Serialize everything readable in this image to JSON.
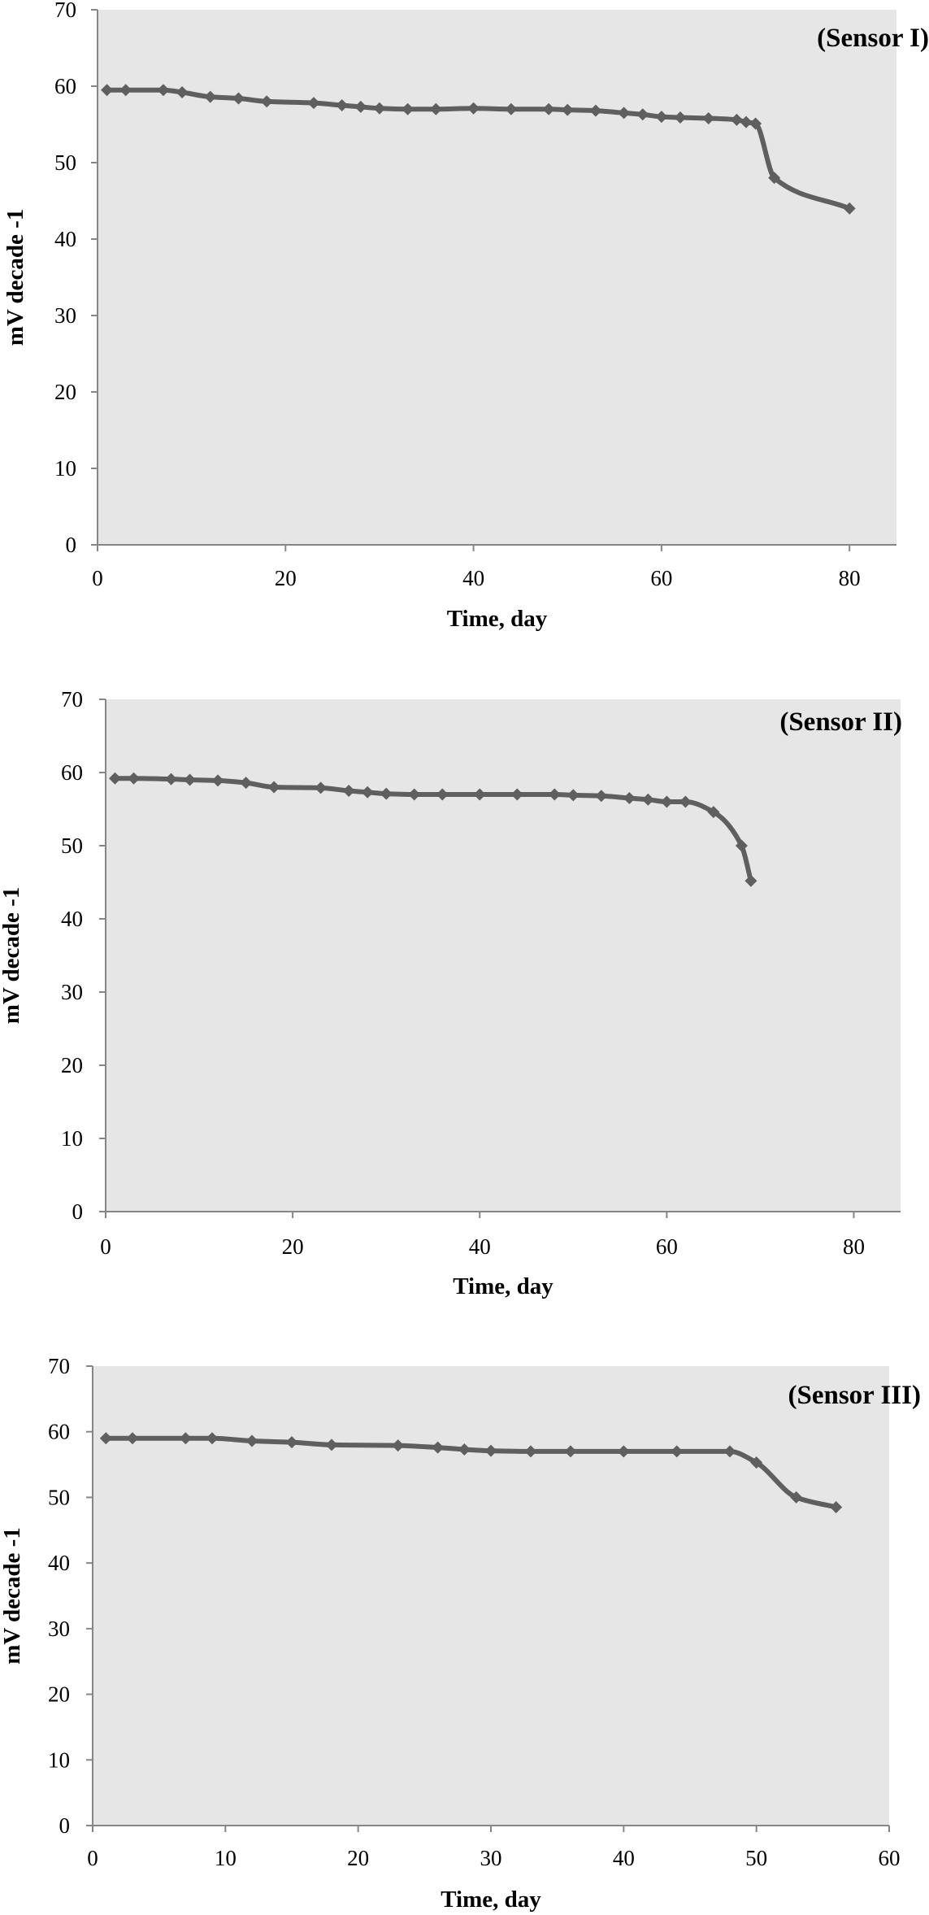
{
  "chart_data": [
    {
      "type": "line",
      "title": "(Sensor I)",
      "xlabel": "Time, day",
      "ylabel": "mV decade -1",
      "xlim": [
        0,
        85
      ],
      "ylim": [
        0,
        70
      ],
      "xticks": [
        0,
        20,
        40,
        60,
        80
      ],
      "yticks": [
        0,
        10,
        20,
        30,
        40,
        50,
        60,
        70
      ],
      "grid": false,
      "series": [
        {
          "x": [
            1,
            3,
            7,
            9,
            12,
            15,
            18,
            23,
            26,
            28,
            30,
            33,
            36,
            40,
            44,
            48,
            50,
            53,
            56,
            58,
            60,
            62,
            65,
            68,
            69,
            70,
            72,
            80
          ],
          "y": [
            59.5,
            59.5,
            59.5,
            59.2,
            58.6,
            58.4,
            58.0,
            57.8,
            57.5,
            57.3,
            57.1,
            57.0,
            57.0,
            57.1,
            57.0,
            57.0,
            56.9,
            56.8,
            56.5,
            56.3,
            56.0,
            55.9,
            55.8,
            55.6,
            55.3,
            55.1,
            48.0,
            44.0
          ]
        }
      ],
      "color": "#5f5f5f",
      "background": "#e6e6e6"
    },
    {
      "type": "line",
      "title": "(Sensor II)",
      "xlabel": "Time, day",
      "ylabel": "mV decade -1",
      "xlim": [
        0,
        85
      ],
      "ylim": [
        0,
        70
      ],
      "xticks": [
        0,
        20,
        40,
        60,
        80
      ],
      "yticks": [
        0,
        10,
        20,
        30,
        40,
        50,
        60,
        70
      ],
      "grid": false,
      "series": [
        {
          "x": [
            1,
            3,
            7,
            9,
            12,
            15,
            18,
            23,
            26,
            28,
            30,
            33,
            36,
            40,
            44,
            48,
            50,
            53,
            56,
            58,
            60,
            62,
            65,
            68,
            69
          ],
          "y": [
            59.2,
            59.2,
            59.1,
            59.0,
            58.9,
            58.6,
            58.0,
            57.9,
            57.5,
            57.3,
            57.1,
            57.0,
            57.0,
            57.0,
            57.0,
            57.0,
            56.9,
            56.8,
            56.5,
            56.3,
            56.0,
            56.0,
            54.6,
            50.0,
            45.2
          ]
        }
      ],
      "color": "#5f5f5f",
      "background": "#e6e6e6"
    },
    {
      "type": "line",
      "title": "(Sensor III)",
      "xlabel": "Time, day",
      "ylabel": "mV decade -1",
      "xlim": [
        0,
        60
      ],
      "ylim": [
        0,
        70
      ],
      "xticks": [
        0,
        10,
        20,
        30,
        40,
        50,
        60
      ],
      "yticks": [
        0,
        10,
        20,
        30,
        40,
        50,
        60,
        70
      ],
      "grid": false,
      "series": [
        {
          "x": [
            1,
            3,
            7,
            9,
            12,
            15,
            18,
            23,
            26,
            28,
            30,
            33,
            36,
            40,
            44,
            48,
            50,
            53,
            56
          ],
          "y": [
            59.0,
            59.0,
            59.0,
            59.0,
            58.6,
            58.4,
            58.0,
            57.9,
            57.6,
            57.3,
            57.1,
            57.0,
            57.0,
            57.0,
            57.0,
            57.0,
            55.3,
            50.0,
            48.5
          ]
        }
      ],
      "color": "#5f5f5f",
      "background": "#e6e6e6"
    }
  ]
}
